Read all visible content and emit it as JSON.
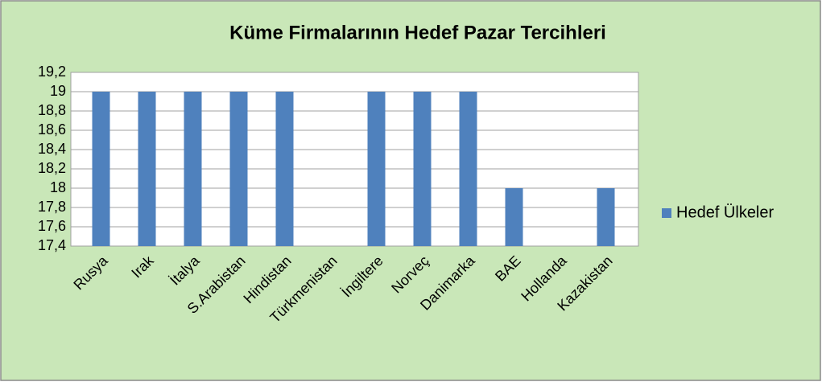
{
  "chart_data": {
    "type": "bar",
    "title": "Küme Firmalarının Hedef Pazar Tercihleri",
    "categories": [
      "Rusya",
      "Irak",
      "İtalya",
      "S.Arabistan",
      "Hindistan",
      "Türkmenistan",
      "İngiltere",
      "Norveç",
      "Danimarka",
      "BAE",
      "Hollanda",
      "Kazakistan"
    ],
    "series": [
      {
        "name": "Hedef Ülkeler",
        "color": "#4f81bd",
        "values": [
          19,
          19,
          19,
          19,
          19,
          null,
          19,
          19,
          19,
          18,
          null,
          18
        ]
      }
    ],
    "ylim": [
      17.4,
      19.2
    ],
    "yticks": [
      {
        "value": 17.4,
        "label": "17,4"
      },
      {
        "value": 17.6,
        "label": "17,6"
      },
      {
        "value": 17.8,
        "label": "17,8"
      },
      18,
      {
        "value": 18.2,
        "label": "18,2"
      },
      {
        "value": 18.4,
        "label": "18,4"
      },
      {
        "value": 18.6,
        "label": "18,6"
      },
      {
        "value": 18.8,
        "label": "18,8"
      },
      19,
      {
        "value": 19.2,
        "label": "19,2"
      }
    ],
    "grid": true,
    "legend": "right"
  }
}
